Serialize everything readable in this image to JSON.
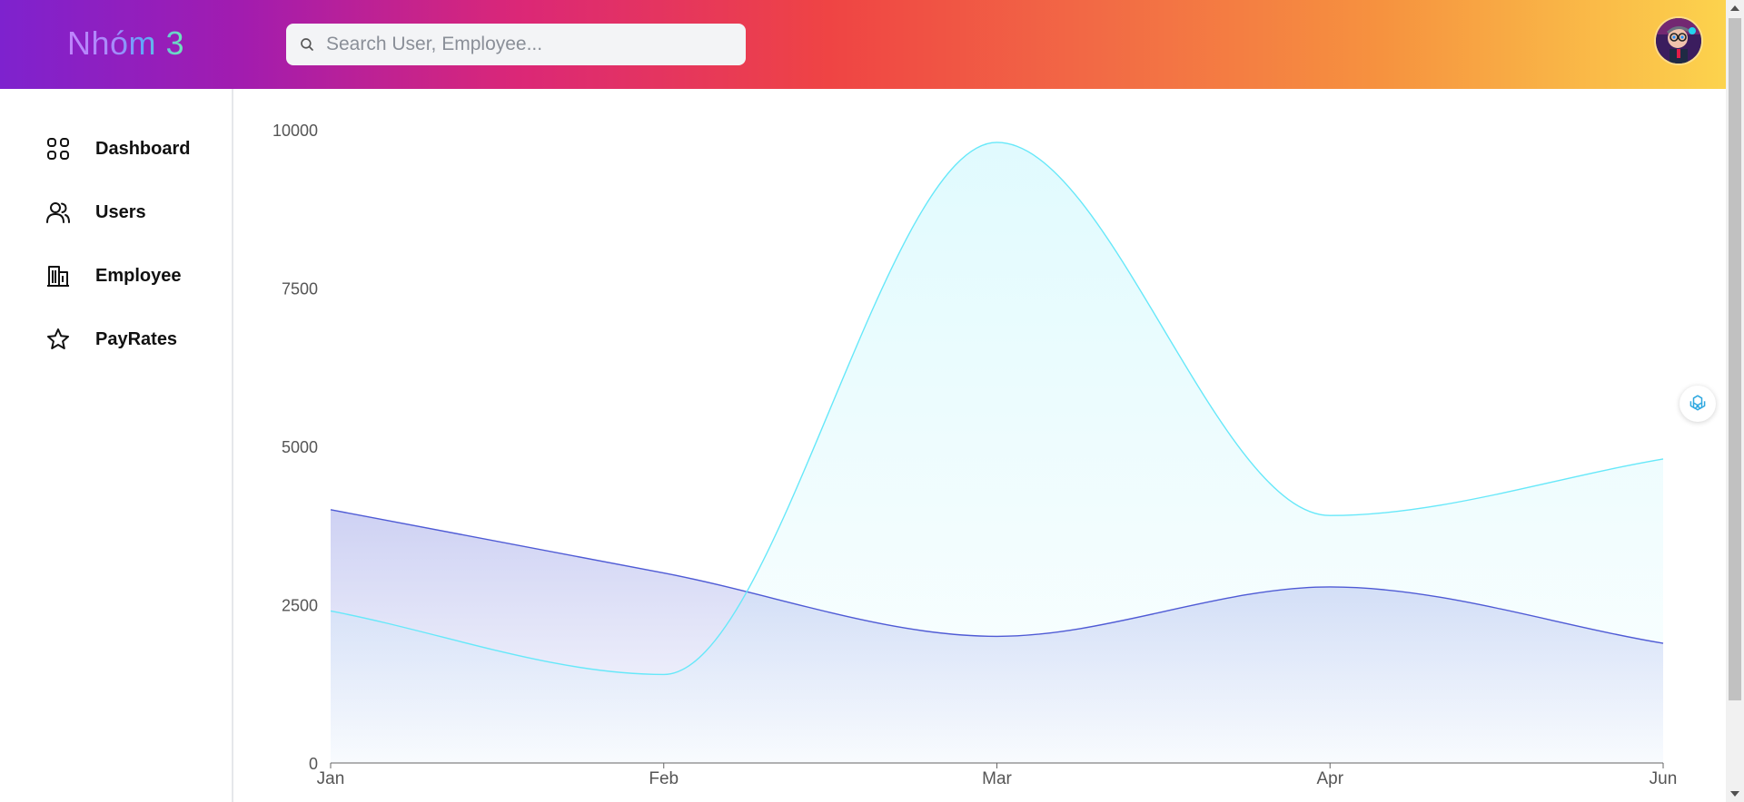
{
  "header": {
    "logo_text": "Nhóm 3",
    "search_placeholder": "Search User, Employee...",
    "search_value": "",
    "avatar_icon": "user-avatar"
  },
  "sidebar": {
    "items": [
      {
        "label": "Dashboard",
        "icon": "grid-icon"
      },
      {
        "label": "Users",
        "icon": "users-icon"
      },
      {
        "label": "Employee",
        "icon": "building-icon"
      },
      {
        "label": "PayRates",
        "icon": "star-icon"
      }
    ]
  },
  "chart_data": {
    "type": "area",
    "categories": [
      "Jan",
      "Feb",
      "Mar",
      "Apr",
      "Jun"
    ],
    "series": [
      {
        "values": [
          4000,
          3000,
          2000,
          2780,
          1890
        ],
        "color": "#4f5bd5"
      },
      {
        "values": [
          2400,
          1398,
          9800,
          3908,
          4800
        ],
        "color": "#67e8f9"
      }
    ],
    "ylim": [
      0,
      10000
    ],
    "yticks": [
      "0",
      "2500",
      "5000",
      "7500",
      "10000"
    ],
    "grid": false,
    "legend": "none"
  },
  "floating": {
    "assistant_icon": "openai-icon"
  },
  "scrollbar": {
    "up_icon": "scroll-up-arrow-icon",
    "down_icon": "scroll-down-arrow-icon"
  }
}
